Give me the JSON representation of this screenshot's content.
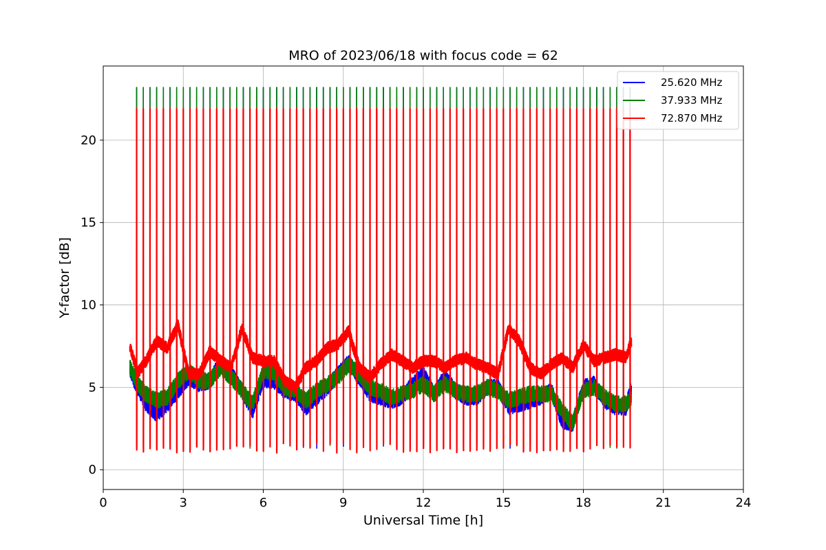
{
  "chart_data": {
    "type": "line",
    "title": "MRO of 2023/06/18 with focus code = 62",
    "xlabel": "Universal Time [h]",
    "ylabel": "Y-factor [dB]",
    "xlim": [
      0,
      24
    ],
    "ylim": [
      -1.2,
      24.5
    ],
    "xticks": [
      0,
      3,
      6,
      9,
      12,
      15,
      18,
      21,
      24
    ],
    "yticks": [
      0,
      5,
      10,
      15,
      20
    ],
    "grid": true,
    "legend_position": "top-right",
    "calibration_pulse": {
      "start_h": 1.0,
      "end_h": 19.8,
      "period_h": 0.25,
      "high_db": {
        "25.620 MHz": 23.2,
        "37.933 MHz": 23.2,
        "72.870 MHz": 21.9
      },
      "low_db": {
        "25.620 MHz": 1.3,
        "37.933 MHz": 1.3,
        "72.870 MHz": 1.0
      }
    },
    "series": [
      {
        "name": "25.620 MHz",
        "color": "#0000ff",
        "x": [
          1.0,
          1.3,
          1.6,
          2.0,
          2.4,
          2.8,
          3.2,
          3.6,
          4.0,
          4.4,
          4.8,
          5.2,
          5.6,
          6.0,
          6.4,
          6.8,
          7.2,
          7.6,
          8.0,
          8.4,
          8.8,
          9.2,
          9.6,
          10.0,
          10.4,
          10.8,
          11.2,
          11.6,
          12.0,
          12.4,
          12.8,
          13.2,
          13.6,
          14.0,
          14.4,
          14.8,
          15.2,
          15.6,
          16.0,
          16.4,
          16.8,
          17.2,
          17.6,
          18.0,
          18.4,
          18.8,
          19.2,
          19.6,
          19.8
        ],
        "values": [
          6.0,
          5.0,
          4.0,
          3.4,
          4.0,
          4.8,
          5.6,
          5.2,
          5.4,
          6.5,
          5.8,
          4.8,
          3.6,
          5.5,
          5.4,
          4.8,
          4.6,
          3.8,
          4.4,
          5.0,
          5.8,
          6.5,
          5.6,
          4.6,
          4.4,
          4.2,
          4.4,
          5.2,
          5.8,
          4.6,
          5.6,
          4.8,
          4.4,
          4.4,
          5.0,
          5.0,
          3.8,
          4.0,
          4.2,
          4.4,
          4.8,
          3.0,
          2.8,
          5.0,
          5.2,
          4.2,
          3.8,
          3.8,
          5.0
        ]
      },
      {
        "name": "37.933 MHz",
        "color": "#008000",
        "x": [
          1.0,
          1.3,
          1.6,
          2.0,
          2.4,
          2.8,
          3.2,
          3.6,
          4.0,
          4.4,
          4.8,
          5.2,
          5.6,
          6.0,
          6.4,
          6.8,
          7.2,
          7.6,
          8.0,
          8.4,
          8.8,
          9.2,
          9.6,
          10.0,
          10.4,
          10.8,
          11.2,
          11.6,
          12.0,
          12.4,
          12.8,
          13.2,
          13.6,
          14.0,
          14.4,
          14.8,
          15.2,
          15.6,
          16.0,
          16.4,
          16.8,
          17.2,
          17.6,
          18.0,
          18.4,
          18.8,
          19.2,
          19.6,
          19.8
        ],
        "values": [
          6.2,
          5.2,
          4.6,
          4.2,
          4.4,
          5.4,
          6.0,
          5.4,
          5.4,
          6.2,
          5.6,
          4.8,
          4.0,
          6.0,
          5.8,
          5.0,
          4.8,
          4.2,
          4.8,
          5.2,
          5.6,
          6.4,
          5.8,
          5.0,
          4.8,
          4.4,
          4.6,
          4.8,
          5.2,
          4.6,
          5.2,
          4.8,
          4.6,
          4.6,
          5.0,
          4.8,
          4.2,
          4.4,
          4.6,
          4.6,
          4.6,
          3.6,
          2.8,
          4.8,
          5.0,
          4.4,
          4.0,
          4.0,
          4.4
        ]
      },
      {
        "name": "72.870 MHz",
        "color": "#ff0000",
        "x": [
          1.0,
          1.3,
          1.6,
          2.0,
          2.4,
          2.8,
          3.2,
          3.6,
          4.0,
          4.4,
          4.8,
          5.2,
          5.6,
          6.0,
          6.4,
          6.8,
          7.2,
          7.6,
          8.0,
          8.4,
          8.8,
          9.2,
          9.6,
          10.0,
          10.4,
          10.8,
          11.2,
          11.6,
          12.0,
          12.4,
          12.8,
          13.2,
          13.6,
          14.0,
          14.4,
          14.8,
          15.2,
          15.6,
          16.0,
          16.4,
          16.8,
          17.2,
          17.6,
          18.0,
          18.4,
          18.8,
          19.2,
          19.6,
          19.8
        ],
        "values": [
          7.4,
          5.9,
          6.6,
          7.8,
          7.4,
          8.8,
          5.8,
          5.8,
          7.2,
          6.6,
          6.2,
          8.6,
          6.8,
          6.6,
          6.6,
          5.4,
          5.0,
          6.2,
          6.6,
          7.4,
          7.6,
          8.4,
          6.2,
          5.6,
          6.4,
          7.0,
          6.6,
          6.2,
          6.6,
          6.6,
          6.2,
          6.6,
          6.8,
          6.4,
          6.2,
          5.8,
          8.6,
          7.8,
          6.2,
          5.8,
          6.4,
          6.8,
          6.2,
          7.6,
          6.6,
          6.8,
          7.0,
          6.8,
          7.8
        ]
      }
    ]
  }
}
